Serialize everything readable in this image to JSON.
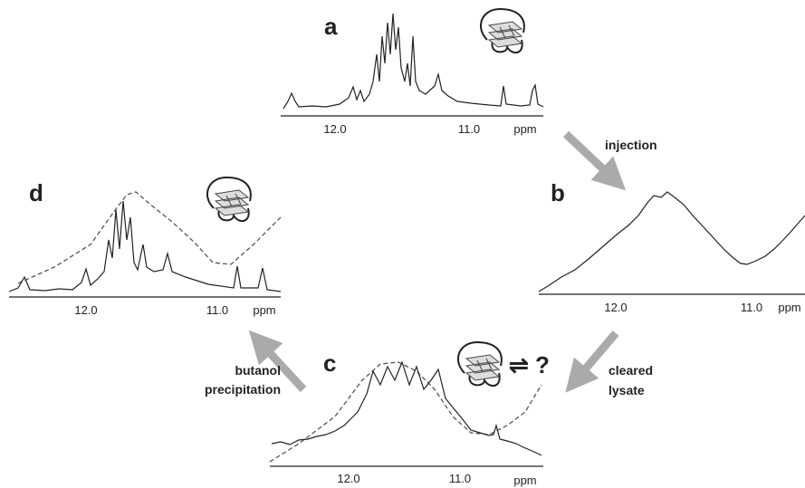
{
  "panels": [
    {
      "label": "a",
      "ticks": [
        "12.0",
        "11.0"
      ],
      "unit": "ppm"
    },
    {
      "label": "b",
      "ticks": [
        "12.0",
        "11.0"
      ],
      "unit": "ppm"
    },
    {
      "label": "c",
      "ticks": [
        "12.0",
        "11.0"
      ],
      "unit": "ppm"
    },
    {
      "label": "d",
      "ticks": [
        "12.0",
        "11.0"
      ],
      "unit": "ppm"
    }
  ],
  "arrows": [
    {
      "lines": [
        "injection"
      ]
    },
    {
      "lines": [
        "cleared",
        "lysate"
      ]
    },
    {
      "lines": [
        "butanol",
        "precipitation"
      ]
    }
  ],
  "annotation": "⇌ ?"
}
